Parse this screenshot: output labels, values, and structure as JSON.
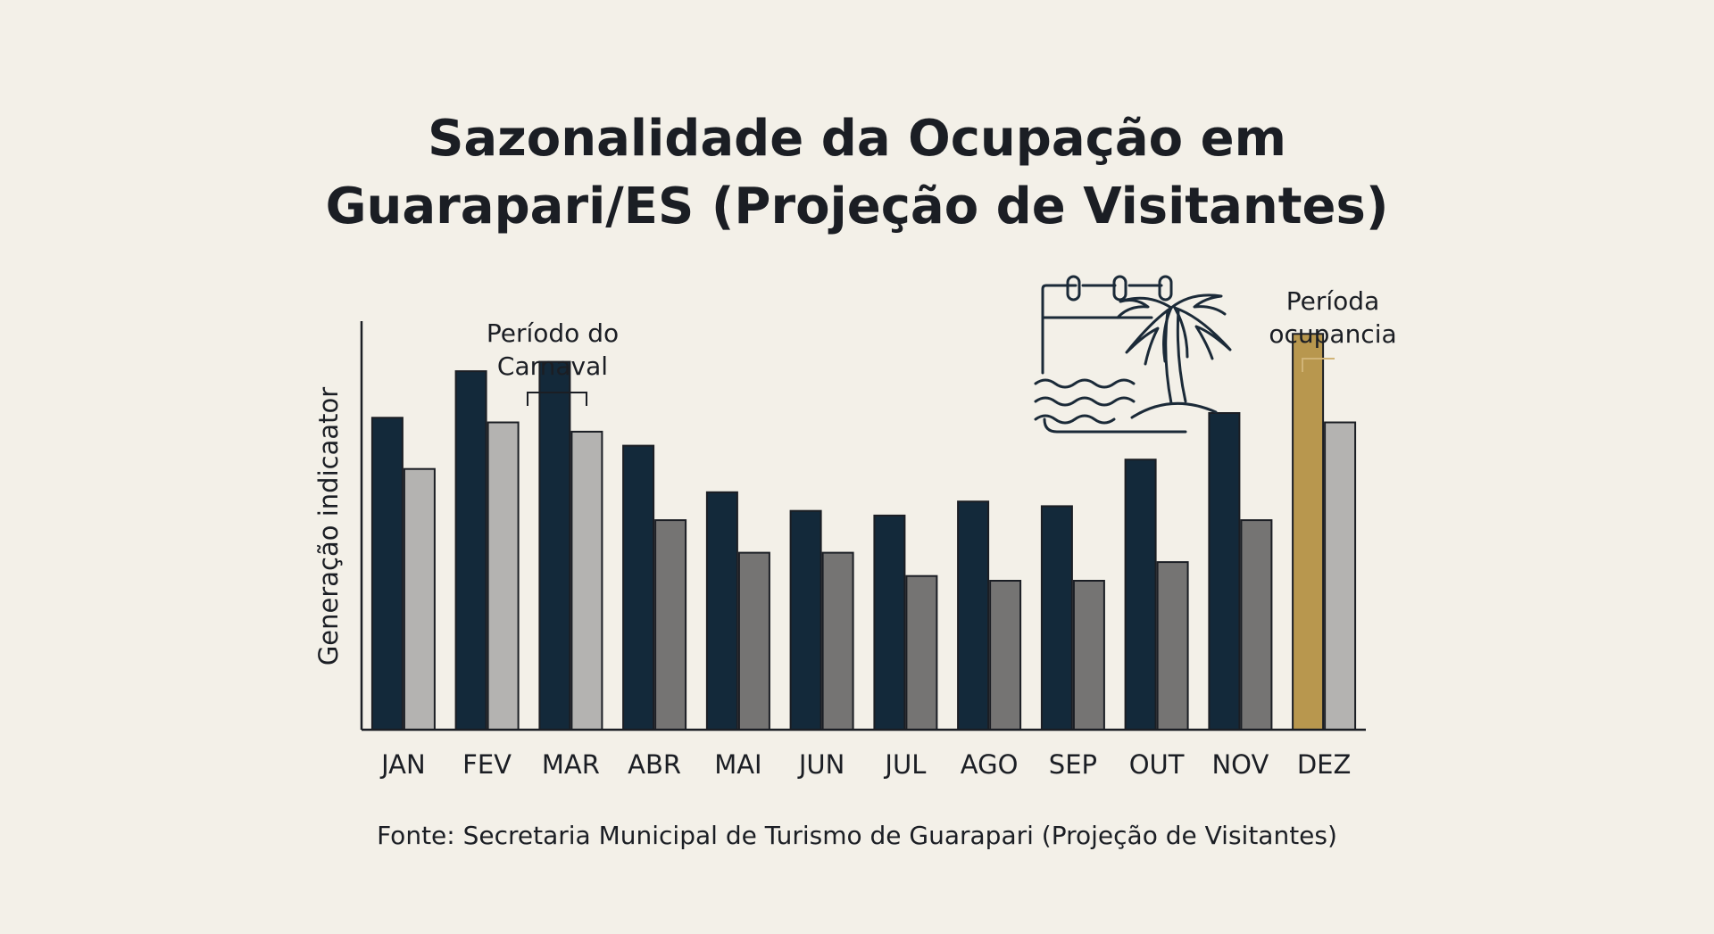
{
  "title_lines": [
    "Sazonalidade da Ocupação em",
    "Guarapari/ES (Projeção de Visitantes)"
  ],
  "source": "Fonte: Secretaria Municipal de Turismo de Guarapari (Projeção de Visitantes)",
  "icon": "calendar-palm-beach-icon",
  "colors": {
    "primary": "#13293a",
    "highlight": "#b8974e",
    "secondary_high": "#b4b3b1",
    "secondary_low": "#757473",
    "outline": "#1b1e24",
    "annotation_bracket": "#d1b477"
  },
  "chart_data": {
    "type": "bar",
    "ylabel": "Generação indicaator",
    "xlabel": "",
    "categories": [
      "JAN",
      "FEV",
      "MAR",
      "ABR",
      "MAI",
      "JUN",
      "JUL",
      "AGO",
      "SEP",
      "OUT",
      "NOV",
      "DEZ"
    ],
    "series": [
      {
        "values": [
          67,
          77,
          79,
          61,
          51,
          47,
          46,
          49,
          48,
          58,
          68,
          85
        ]
      },
      {
        "values": [
          56,
          66,
          64,
          45,
          38,
          38,
          33,
          32,
          32,
          36,
          45,
          66
        ]
      }
    ],
    "ylim": [
      0,
      100
    ],
    "grid": false,
    "annotations": [
      {
        "text_lines": [
          "Período do",
          "Carnaval"
        ],
        "category": "MAR"
      },
      {
        "text_lines": [
          "Períoda",
          "ocupancia"
        ],
        "category": "DEZ"
      }
    ]
  }
}
